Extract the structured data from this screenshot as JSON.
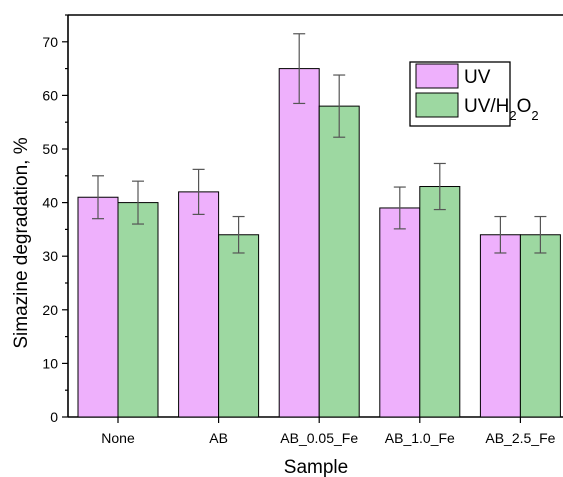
{
  "chart_data": {
    "type": "bar",
    "title": "",
    "xlabel": "Sample",
    "ylabel": "Simazine degradation, %",
    "categories": [
      "None",
      "AB",
      "AB_0.05_Fe",
      "AB_1.0_Fe",
      "AB_2.5_Fe"
    ],
    "series": [
      {
        "name": "UV",
        "color": "#eeb0fc",
        "values": [
          41,
          42,
          65,
          39,
          34
        ],
        "errors": [
          4,
          4.2,
          6.5,
          3.9,
          3.4
        ]
      },
      {
        "name": "UV/H2O2",
        "color": "#9dd8a1",
        "values": [
          40,
          34,
          58,
          43,
          34
        ],
        "errors": [
          4,
          3.4,
          5.8,
          4.3,
          3.4
        ]
      }
    ],
    "ylim": [
      0,
      75
    ],
    "yticks": [
      0,
      10,
      20,
      30,
      40,
      50,
      60,
      70
    ],
    "yminor_step": 5,
    "grid": false,
    "legend_position": "top-right",
    "axis_color": "#000000",
    "errorbar_color": "#555555"
  }
}
